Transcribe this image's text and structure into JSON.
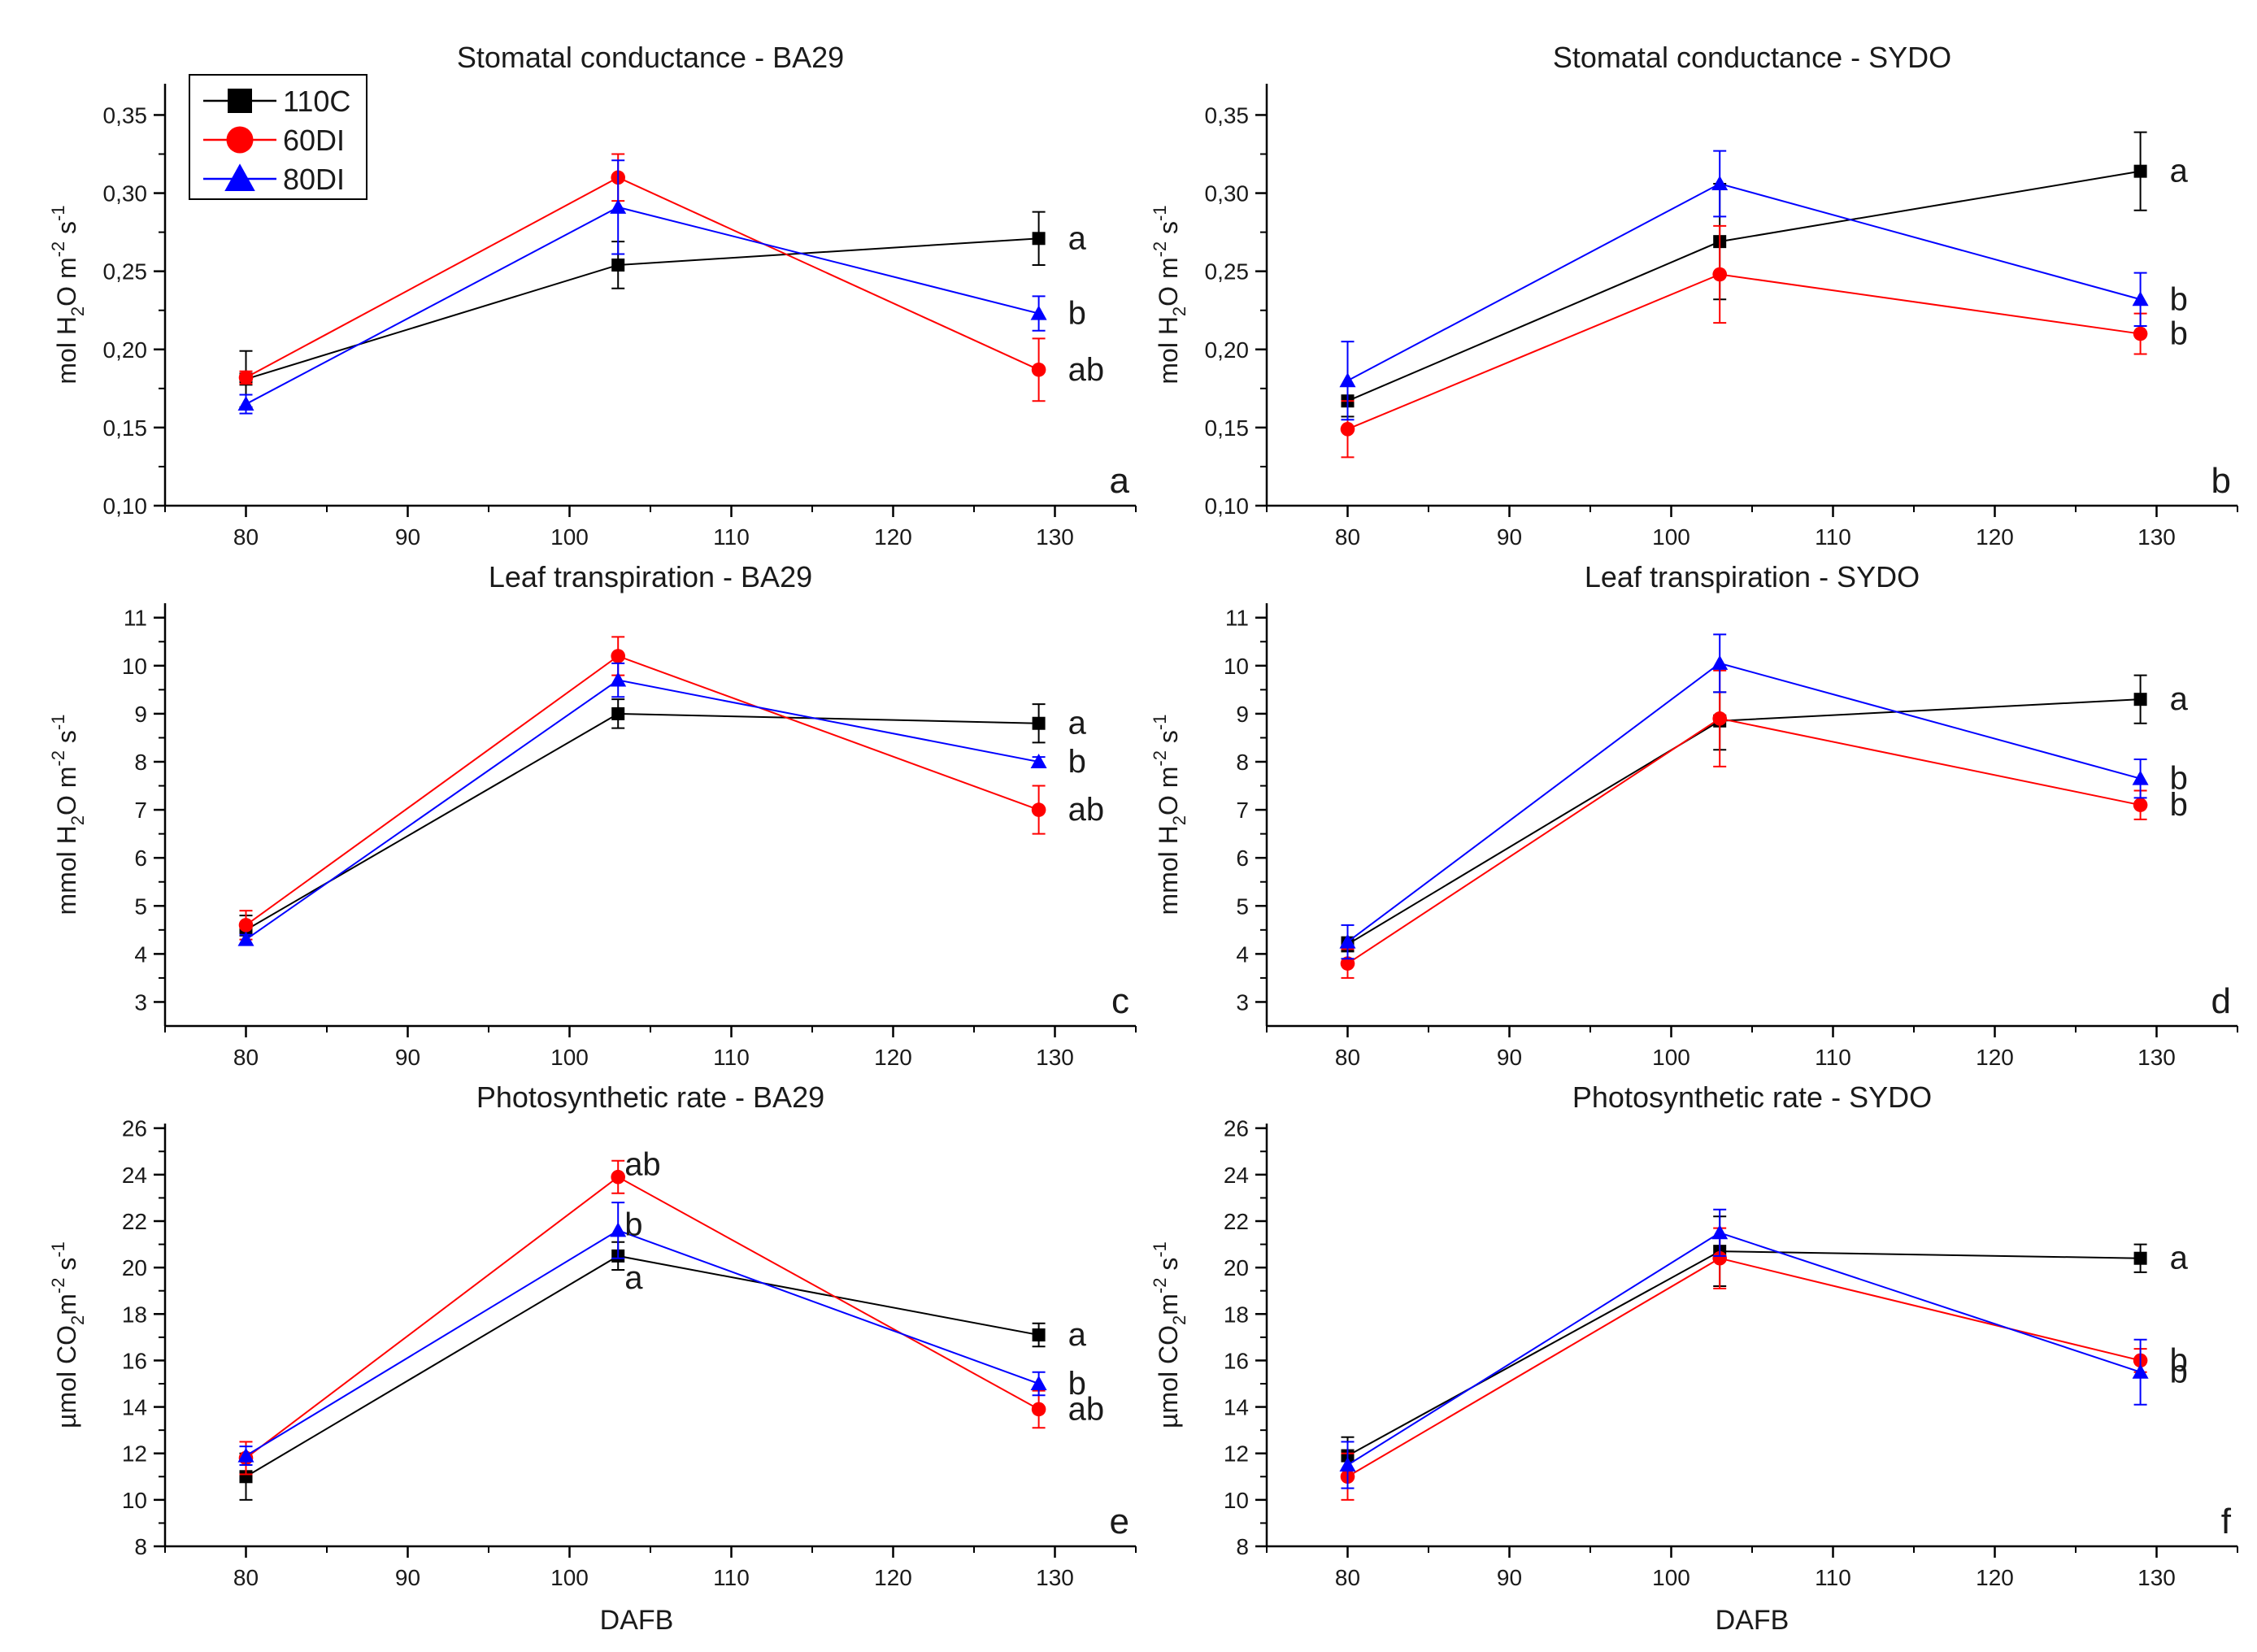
{
  "x_axis_label": "DAFB",
  "legend": [
    {
      "name": "110C",
      "color": "#000000",
      "marker": "square"
    },
    {
      "name": "60DI",
      "color": "#ff0000",
      "marker": "circle"
    },
    {
      "name": "80DI",
      "color": "#0000ff",
      "marker": "triangle"
    }
  ],
  "chart_data": [
    {
      "type": "line",
      "panel_letter": "a",
      "title": "Stomatal conductance - BA29",
      "ylabel": "mol H2O m-2 s-1",
      "ylabel_parts": {
        "pre": "mol H",
        "sub1": "2",
        "mid": "O m",
        "sup1": "-2",
        "mid2": " s",
        "sup2": "-1"
      },
      "xlim": [
        75,
        135
      ],
      "ylim": [
        0.1,
        0.37
      ],
      "xticks": [
        80,
        90,
        100,
        110,
        120,
        130
      ],
      "xtick_labels": [
        "80",
        "90",
        "100",
        "110",
        "120",
        "130"
      ],
      "yticks": [
        0.1,
        0.15,
        0.2,
        0.25,
        0.3,
        0.35
      ],
      "ytick_labels": [
        "0,10",
        "0,15",
        "0,20",
        "0,25",
        "0,30",
        "0,35"
      ],
      "x": [
        80,
        103,
        129
      ],
      "series": [
        {
          "name": "110C",
          "values": [
            0.181,
            0.254,
            0.271
          ],
          "errors": [
            0.018,
            0.015,
            0.017
          ]
        },
        {
          "name": "60DI",
          "values": [
            0.182,
            0.31,
            0.187
          ],
          "errors": [
            0.004,
            0.015,
            0.02
          ]
        },
        {
          "name": "80DI",
          "values": [
            0.165,
            0.291,
            0.223
          ],
          "errors": [
            0.006,
            0.03,
            0.011
          ]
        }
      ],
      "significance": [
        "a",
        "ab",
        "b"
      ]
    },
    {
      "type": "line",
      "panel_letter": "b",
      "title": "Stomatal conductance - SYDO",
      "ylabel": "mol H2O m-2 s-1",
      "ylabel_parts": {
        "pre": "mol H",
        "sub1": "2",
        "mid": "O m",
        "sup1": "-2",
        "mid2": " s",
        "sup2": "-1"
      },
      "xlim": [
        75,
        135
      ],
      "ylim": [
        0.1,
        0.37
      ],
      "xticks": [
        80,
        90,
        100,
        110,
        120,
        130
      ],
      "xtick_labels": [
        "80",
        "90",
        "100",
        "110",
        "120",
        "130"
      ],
      "yticks": [
        0.1,
        0.15,
        0.2,
        0.25,
        0.3,
        0.35
      ],
      "ytick_labels": [
        "0,10",
        "0,15",
        "0,20",
        "0,25",
        "0,30",
        "0,35"
      ],
      "x": [
        80,
        103,
        129
      ],
      "series": [
        {
          "name": "110C",
          "values": [
            0.167,
            0.269,
            0.314
          ],
          "errors": [
            0.01,
            0.037,
            0.025
          ]
        },
        {
          "name": "60DI",
          "values": [
            0.149,
            0.248,
            0.21
          ],
          "errors": [
            0.018,
            0.031,
            0.013
          ]
        },
        {
          "name": "80DI",
          "values": [
            0.18,
            0.306,
            0.232
          ],
          "errors": [
            0.025,
            0.021,
            0.017
          ]
        }
      ],
      "significance": [
        "a",
        "b",
        "b"
      ]
    },
    {
      "type": "line",
      "panel_letter": "c",
      "title": "Leaf transpiration - BA29",
      "ylabel": "mmol H2O m-2 s-1",
      "ylabel_parts": {
        "pre": "mmol H",
        "sub1": "2",
        "mid": "O m",
        "sup1": "-2",
        "mid2": " s",
        "sup2": "-1"
      },
      "xlim": [
        75,
        135
      ],
      "ylim": [
        2.5,
        11.3
      ],
      "xticks": [
        80,
        90,
        100,
        110,
        120,
        130
      ],
      "xtick_labels": [
        "80",
        "90",
        "100",
        "110",
        "120",
        "130"
      ],
      "yticks": [
        3,
        4,
        5,
        6,
        7,
        8,
        9,
        10,
        11
      ],
      "ytick_labels": [
        "3",
        "4",
        "5",
        "6",
        "7",
        "8",
        "9",
        "10",
        "11"
      ],
      "x": [
        80,
        103,
        129
      ],
      "series": [
        {
          "name": "110C",
          "values": [
            4.5,
            9.0,
            8.8
          ],
          "errors": [
            0.3,
            0.3,
            0.4
          ]
        },
        {
          "name": "60DI",
          "values": [
            4.6,
            10.2,
            7.0
          ],
          "errors": [
            0.3,
            0.4,
            0.5
          ]
        },
        {
          "name": "80DI",
          "values": [
            4.3,
            9.7,
            8.0
          ],
          "errors": [
            0.1,
            0.35,
            0.1
          ]
        }
      ],
      "significance": [
        "a",
        "ab",
        "b"
      ]
    },
    {
      "type": "line",
      "panel_letter": "d",
      "title": "Leaf transpiration - SYDO",
      "ylabel": "mmol H2O m-2 s-1",
      "ylabel_parts": {
        "pre": "mmol H",
        "sub1": "2",
        "mid": "O m",
        "sup1": "-2",
        "mid2": " s",
        "sup2": "-1"
      },
      "xlim": [
        75,
        135
      ],
      "ylim": [
        2.5,
        11.3
      ],
      "xticks": [
        80,
        90,
        100,
        110,
        120,
        130
      ],
      "xtick_labels": [
        "80",
        "90",
        "100",
        "110",
        "120",
        "130"
      ],
      "yticks": [
        3,
        4,
        5,
        6,
        7,
        8,
        9,
        10,
        11
      ],
      "ytick_labels": [
        "3",
        "4",
        "5",
        "6",
        "7",
        "8",
        "9",
        "10",
        "11"
      ],
      "x": [
        80,
        103,
        129
      ],
      "series": [
        {
          "name": "110C",
          "values": [
            4.2,
            8.85,
            9.3
          ],
          "errors": [
            0.15,
            0.6,
            0.5
          ]
        },
        {
          "name": "60DI",
          "values": [
            3.8,
            8.9,
            7.1
          ],
          "errors": [
            0.3,
            1.0,
            0.3
          ]
        },
        {
          "name": "80DI",
          "values": [
            4.25,
            10.05,
            7.65
          ],
          "errors": [
            0.35,
            0.6,
            0.4
          ]
        }
      ],
      "significance": [
        "a",
        "b",
        "b"
      ]
    },
    {
      "type": "line",
      "panel_letter": "e",
      "title": "Photosynthetic rate - BA29",
      "ylabel": "µmol CO2 m-2 s-1",
      "ylabel_parts": {
        "pre": "µmol CO",
        "sub1": "2",
        "mid": "m",
        "sup1": "-2",
        "mid2": " s",
        "sup2": "-1"
      },
      "xlim": [
        75,
        135
      ],
      "ylim": [
        8,
        26.2
      ],
      "xticks": [
        80,
        90,
        100,
        110,
        120,
        130
      ],
      "xtick_labels": [
        "80",
        "90",
        "100",
        "110",
        "120",
        "130"
      ],
      "yticks": [
        8,
        10,
        12,
        14,
        16,
        18,
        20,
        22,
        24,
        26
      ],
      "ytick_labels": [
        "8",
        "10",
        "12",
        "14",
        "16",
        "18",
        "20",
        "22",
        "24",
        "26"
      ],
      "x": [
        80,
        103,
        129
      ],
      "series": [
        {
          "name": "110C",
          "values": [
            11.0,
            20.5,
            17.1
          ],
          "errors": [
            1.0,
            0.6,
            0.5
          ]
        },
        {
          "name": "60DI",
          "values": [
            11.8,
            23.9,
            13.9
          ],
          "errors": [
            0.7,
            0.7,
            0.8
          ]
        },
        {
          "name": "80DI",
          "values": [
            11.9,
            21.6,
            15.0
          ],
          "errors": [
            0.4,
            1.2,
            0.5
          ]
        }
      ],
      "significance_mid": [
        "a",
        "ab",
        "b"
      ],
      "significance": [
        "a",
        "ab",
        "b"
      ]
    },
    {
      "type": "line",
      "panel_letter": "f",
      "title": "Photosynthetic rate - SYDO",
      "ylabel": "µmol CO2 m-2 s-1",
      "ylabel_parts": {
        "pre": "µmol CO",
        "sub1": "2",
        "mid": "m",
        "sup1": "-2",
        "mid2": " s",
        "sup2": "-1"
      },
      "xlim": [
        75,
        135
      ],
      "ylim": [
        8,
        26.2
      ],
      "xticks": [
        80,
        90,
        100,
        110,
        120,
        130
      ],
      "xtick_labels": [
        "80",
        "90",
        "100",
        "110",
        "120",
        "130"
      ],
      "yticks": [
        8,
        10,
        12,
        14,
        16,
        18,
        20,
        22,
        24,
        26
      ],
      "ytick_labels": [
        "8",
        "10",
        "12",
        "14",
        "16",
        "18",
        "20",
        "22",
        "24",
        "26"
      ],
      "x": [
        80,
        103,
        129
      ],
      "series": [
        {
          "name": "110C",
          "values": [
            11.9,
            20.7,
            20.4
          ],
          "errors": [
            0.8,
            1.5,
            0.6
          ]
        },
        {
          "name": "60DI",
          "values": [
            11.0,
            20.4,
            16.0
          ],
          "errors": [
            1.0,
            1.3,
            0.5
          ]
        },
        {
          "name": "80DI",
          "values": [
            11.5,
            21.5,
            15.5
          ],
          "errors": [
            1.0,
            1.0,
            1.4
          ]
        }
      ],
      "significance": [
        "a",
        "b",
        "b"
      ]
    }
  ]
}
